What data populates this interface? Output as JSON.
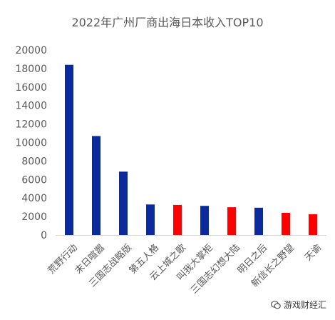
{
  "chart_data": {
    "type": "bar",
    "title": "2022年广州厂商出海日本收入TOP10",
    "categories": [
      "荒野行动",
      "末日喧嚣",
      "三国志战略版",
      "第五人格",
      "云上城之歌",
      "叫我大掌柜",
      "三国志幻想大陆",
      "明日之后",
      "新信长之野望",
      "天谕"
    ],
    "values": [
      18400,
      10700,
      6850,
      3300,
      3250,
      3150,
      3000,
      2950,
      2400,
      2250
    ],
    "bar_colors": [
      "#0a2a9e",
      "#0a2a9e",
      "#0a2a9e",
      "#0a2a9e",
      "#ff0000",
      "#0a2a9e",
      "#ff0000",
      "#0a2a9e",
      "#ff0000",
      "#ff0000"
    ],
    "ylim": [
      0,
      20000
    ],
    "yticks": [
      0,
      2000,
      4000,
      6000,
      8000,
      10000,
      12000,
      14000,
      16000,
      18000,
      20000
    ],
    "grid": false,
    "legend": false
  },
  "watermark": {
    "text": "游戏财经汇",
    "icon": "wechat-icon"
  }
}
